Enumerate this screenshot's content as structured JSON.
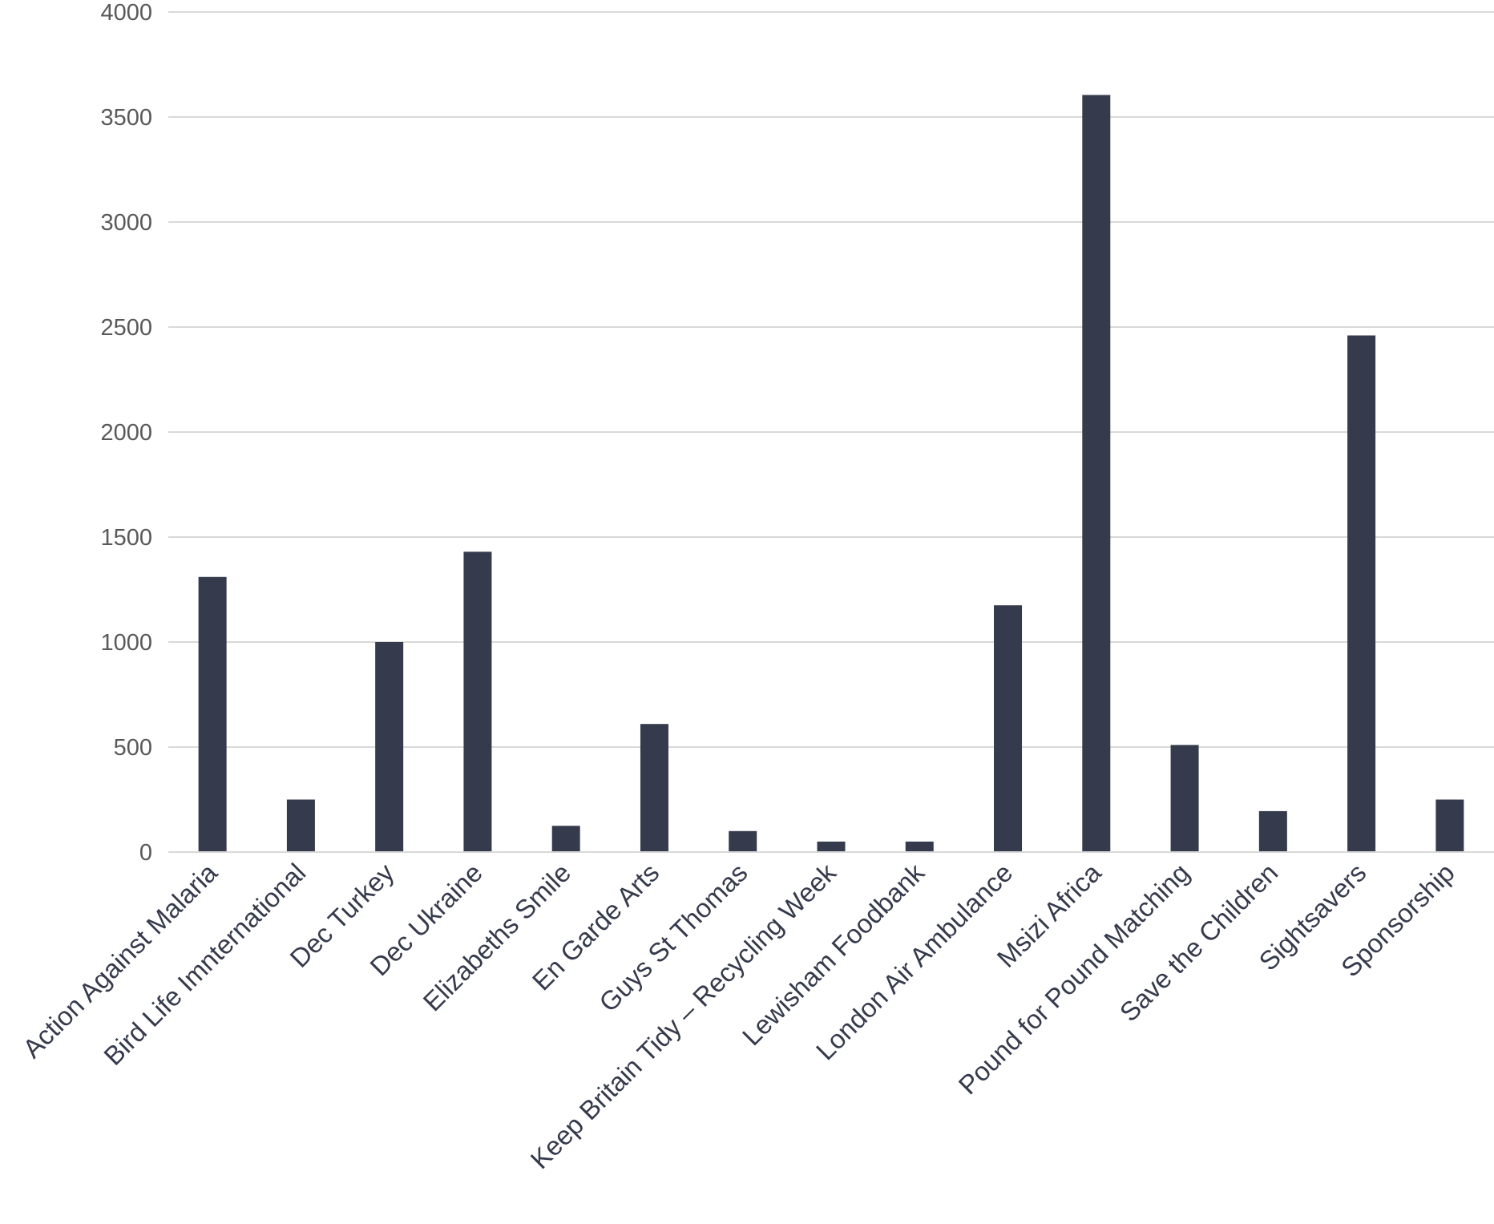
{
  "chart_data": {
    "type": "bar",
    "title": "",
    "xlabel": "",
    "ylabel": "",
    "categories": [
      "Action Against Malaria",
      "Bird Life Imnternational",
      "Dec Turkey",
      "Dec Ukraine",
      "Elizabeths Smile",
      "En Garde Arts",
      "Guys St Thomas",
      "Keep Britain Tidy – Recycling Week",
      "Lewisham Foodbank",
      "London Air Ambulance",
      "Msizi Africa",
      "Pound for Pound Matching",
      "Save the Children",
      "Sightsavers",
      "Sponsorship"
    ],
    "values": [
      1310,
      250,
      1000,
      1430,
      125,
      610,
      100,
      50,
      50,
      1175,
      3605,
      510,
      195,
      2460,
      250
    ],
    "ylim": [
      0,
      4000
    ],
    "yticks": [
      "0",
      "500",
      "1000",
      "1500",
      "2000",
      "2500",
      "3000",
      "3500",
      "4000"
    ],
    "grid": true,
    "legend": "none",
    "bar_color": "#353b4d",
    "grid_color": "#d9d9d9"
  }
}
